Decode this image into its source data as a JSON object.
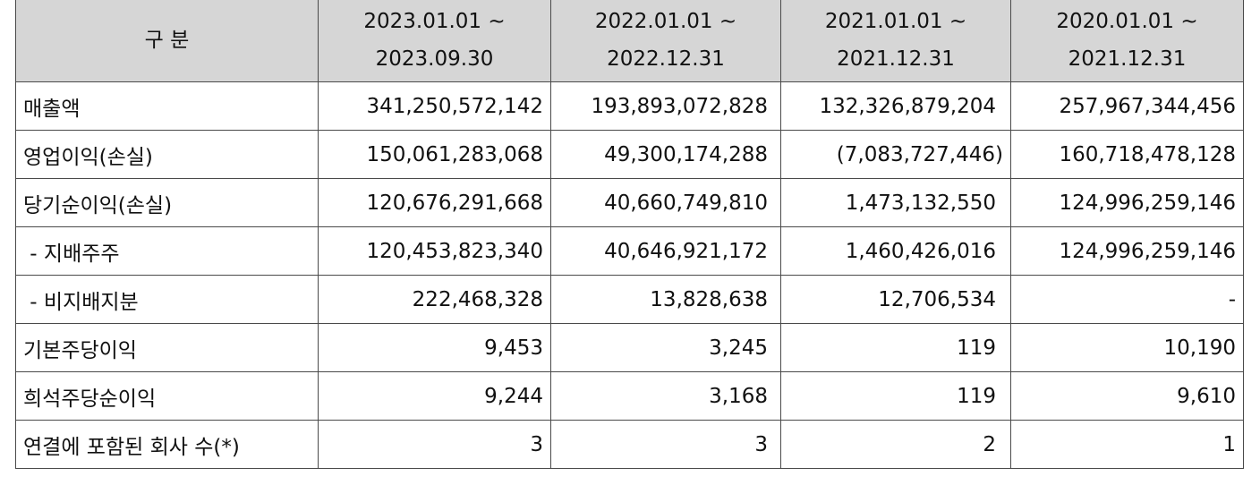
{
  "header": {
    "category": "구 분",
    "periods": [
      {
        "start": "2023.01.01 ~",
        "end": "2023.09.30"
      },
      {
        "start": "2022.01.01 ~",
        "end": "2022.12.31"
      },
      {
        "start": "2021.01.01 ~",
        "end": "2021.12.31"
      },
      {
        "start": "2020.01.01 ~",
        "end": "2021.12.31"
      }
    ]
  },
  "rows": [
    {
      "label": "매출액",
      "values": [
        "341,250,572,142",
        "193,893,072,828",
        "132,326,879,204",
        "257,967,344,456"
      ]
    },
    {
      "label": "영업이익(손실)",
      "values": [
        "150,061,283,068",
        "49,300,174,288",
        "(7,083,727,446)",
        "160,718,478,128"
      ]
    },
    {
      "label": "당기순이익(손실)",
      "values": [
        "120,676,291,668",
        "40,660,749,810",
        "1,473,132,550",
        "124,996,259,146"
      ]
    },
    {
      "label": " - 지배주주",
      "values": [
        "120,453,823,340",
        "40,646,921,172",
        "1,460,426,016",
        "124,996,259,146"
      ]
    },
    {
      "label": " - 비지배지분",
      "values": [
        "222,468,328",
        "13,828,638",
        "12,706,534",
        "-"
      ]
    },
    {
      "label": "기본주당이익",
      "values": [
        "9,453",
        "3,245",
        "119",
        "10,190"
      ]
    },
    {
      "label": "희석주당순이익",
      "values": [
        "9,244",
        "3,168",
        "119",
        "9,610"
      ]
    },
    {
      "label": "연결에 포함된 회사 수(*)",
      "values": [
        "3",
        "3",
        "2",
        "1"
      ]
    }
  ]
}
